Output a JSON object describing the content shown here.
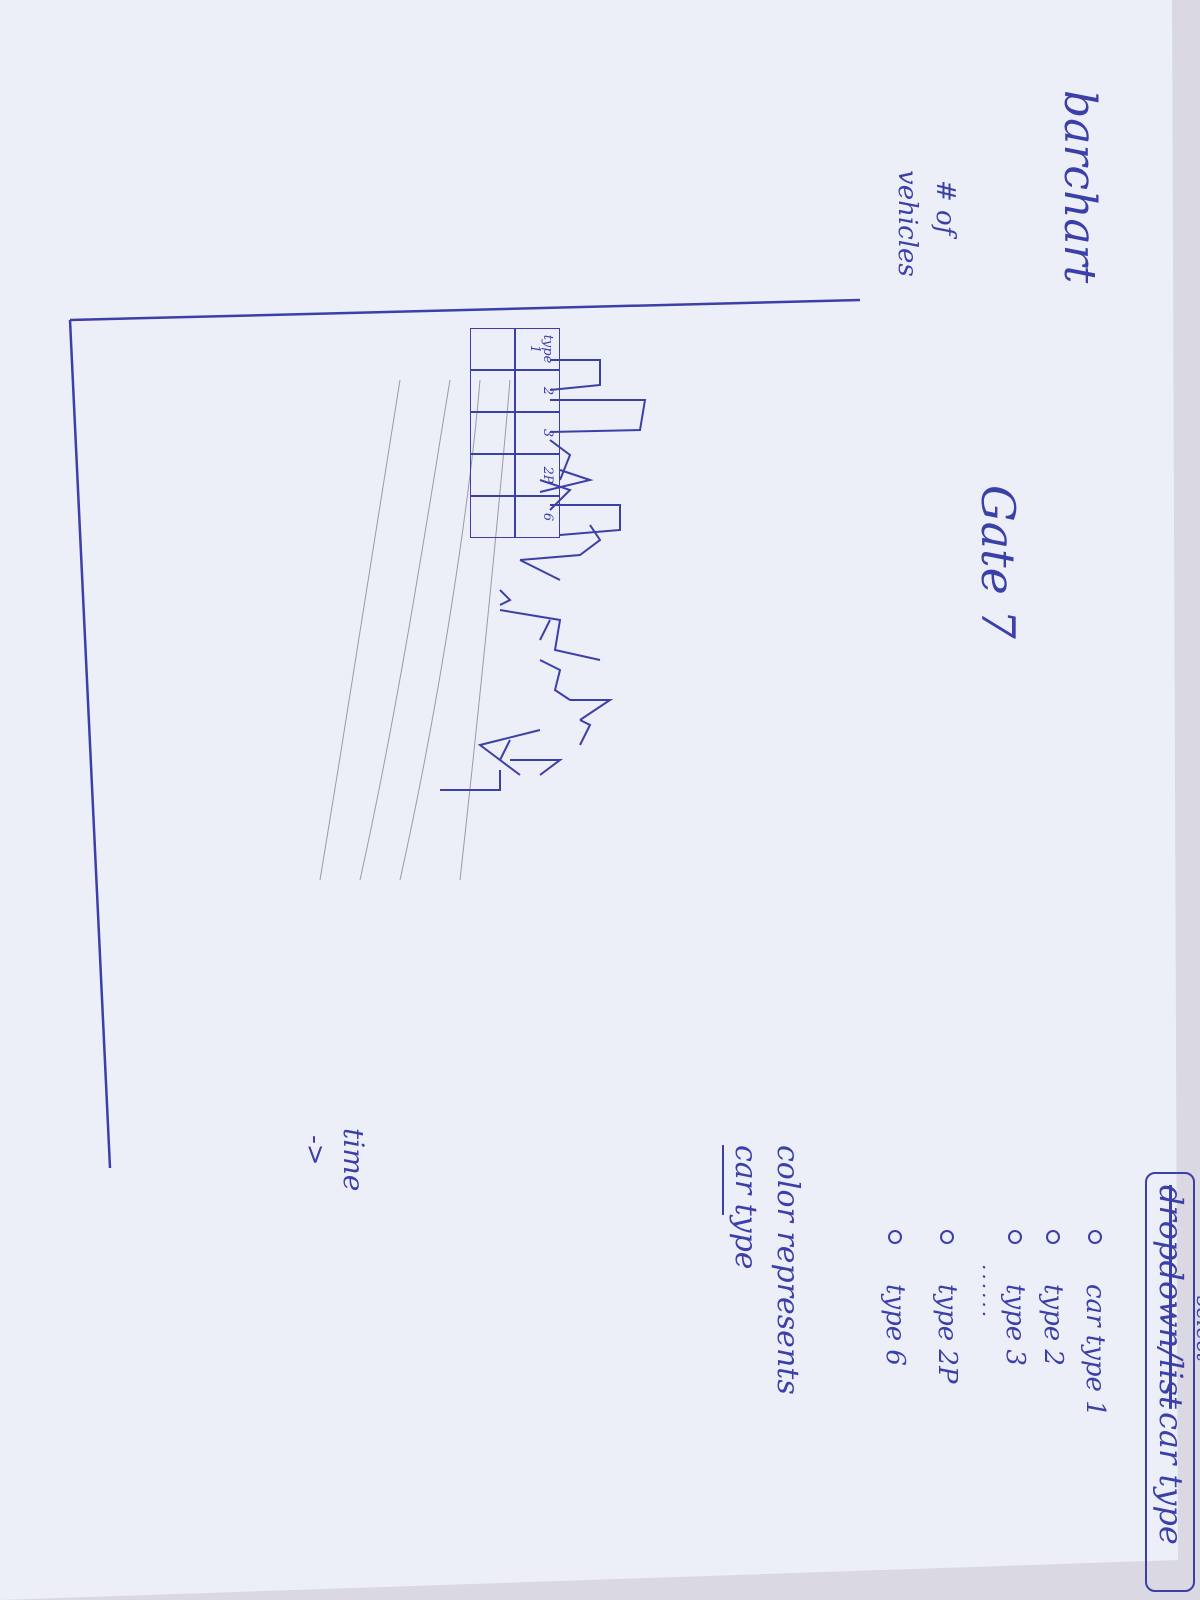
{
  "page": {
    "title": "barchart",
    "heading": "Gate 7"
  },
  "chart": {
    "y_axis_label_line1": "# of",
    "y_axis_label_line2": "vehicles",
    "x_axis_label": "time",
    "x_axis_arrow": "->",
    "legend_cells": [
      "type 1",
      "2",
      "3",
      "2P",
      "6"
    ]
  },
  "car_type_selector": {
    "scribbled_word": "dropdown/list",
    "select_word": "select",
    "label_rest": "car type",
    "options": [
      {
        "label": "car type 1"
      },
      {
        "label": "type 2"
      },
      {
        "label": "type 3"
      },
      {
        "label": "type 2P"
      },
      {
        "label": "type 6"
      }
    ],
    "ellipsis": "......"
  },
  "note": {
    "line1": "color represents",
    "line2": "car type",
    "underlined": "color"
  },
  "colors": {
    "ink": "#3b3fa8",
    "paper": "#eceff7",
    "pencil": "#9a9aa8"
  }
}
